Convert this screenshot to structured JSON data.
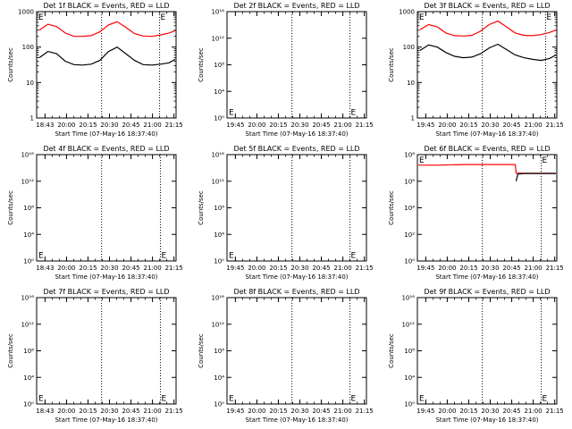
{
  "chart_data": [
    {
      "type": "line",
      "title": "Det 1f BLACK = Events, RED = LLD",
      "xlabel": "Start Time (07-May-16 18:37:40)",
      "ylabel": "Counts/sec",
      "yscale": "log",
      "ylim": [
        1,
        1000
      ],
      "xlim": [
        "18:37",
        "21:18"
      ],
      "x_ticks": [
        "18:43",
        "20:00",
        "20:15",
        "20:30",
        "20:45",
        "21:00",
        "21:15"
      ],
      "y_ticks": [
        "1",
        "10",
        "100",
        "1000"
      ],
      "dotted_lines": [
        "19:52",
        "20:59"
      ],
      "markers": [
        {
          "label": "E",
          "x": "18:39",
          "y": 1000
        },
        {
          "label": "E",
          "x": "21:00",
          "y": 1000
        }
      ],
      "series": [
        {
          "color": "#ff0000",
          "x": [
            "18:40",
            "18:50",
            "19:00",
            "19:10",
            "19:20",
            "19:30",
            "19:40",
            "19:50",
            "20:00",
            "20:10",
            "20:20",
            "20:30",
            "20:40",
            "20:50",
            "21:00",
            "21:10",
            "21:17"
          ],
          "values": [
            300,
            440,
            380,
            250,
            200,
            200,
            210,
            270,
            420,
            520,
            360,
            240,
            205,
            200,
            220,
            250,
            290
          ]
        },
        {
          "color": "#000000",
          "x": [
            "18:40",
            "18:50",
            "19:00",
            "19:10",
            "19:20",
            "19:30",
            "19:40",
            "19:50",
            "20:00",
            "20:10",
            "20:20",
            "20:30",
            "20:40",
            "20:50",
            "21:00",
            "21:10",
            "21:17"
          ],
          "values": [
            50,
            75,
            65,
            40,
            32,
            31,
            33,
            42,
            75,
            100,
            65,
            42,
            32,
            31,
            33,
            36,
            45
          ]
        }
      ]
    },
    {
      "type": "line",
      "title": "Det 2f BLACK = Events, RED = LLD",
      "xlabel": "Start Time (07-May-16 18:37:40)",
      "ylabel": "Counts/sec",
      "yscale": "log",
      "ylim": [
        1,
        1e+16
      ],
      "xlim": [
        "18:37",
        "21:18"
      ],
      "x_ticks": [
        "19:45",
        "20:00",
        "20:15",
        "20:30",
        "20:45",
        "21:00",
        "21:15"
      ],
      "y_ticks": [
        "10⁰",
        "10⁴",
        "10⁸",
        "10¹²",
        "10¹⁶"
      ],
      "dotted_lines": [
        "19:52",
        "20:59"
      ],
      "markers": [
        {
          "label": "E",
          "x": "18:39",
          "y": 3
        },
        {
          "label": "E",
          "x": "21:00",
          "y": 3
        }
      ],
      "series": []
    },
    {
      "type": "line",
      "title": "Det 3f BLACK = Events, RED = LLD",
      "xlabel": "Start Time (07-May-16 18:37:40)",
      "ylabel": "Counts/sec",
      "yscale": "log",
      "ylim": [
        1,
        1000
      ],
      "xlim": [
        "18:37",
        "21:18"
      ],
      "x_ticks": [
        "19:45",
        "20:00",
        "20:15",
        "20:30",
        "20:45",
        "21:00",
        "21:15"
      ],
      "y_ticks": [
        "1",
        "10",
        "100",
        "1000"
      ],
      "dotted_lines": [
        "19:52",
        "21:05"
      ],
      "markers": [
        {
          "label": "E",
          "x": "18:39",
          "y": 1000
        },
        {
          "label": "E",
          "x": "21:06",
          "y": 1000
        }
      ],
      "series": [
        {
          "color": "#ff0000",
          "x": [
            "18:40",
            "18:50",
            "19:00",
            "19:10",
            "19:20",
            "19:30",
            "19:40",
            "19:50",
            "20:00",
            "20:10",
            "20:20",
            "20:30",
            "20:40",
            "20:50",
            "21:00",
            "21:10",
            "21:17"
          ],
          "values": [
            310,
            430,
            370,
            250,
            210,
            205,
            215,
            280,
            430,
            540,
            370,
            250,
            215,
            210,
            225,
            260,
            300
          ]
        },
        {
          "color": "#000000",
          "x": [
            "18:40",
            "18:50",
            "19:00",
            "19:10",
            "19:20",
            "19:30",
            "19:40",
            "19:50",
            "20:00",
            "20:10",
            "20:20",
            "20:30",
            "20:40",
            "20:50",
            "21:00",
            "21:10",
            "21:17"
          ],
          "values": [
            80,
            115,
            100,
            70,
            55,
            50,
            52,
            65,
            95,
            120,
            85,
            60,
            50,
            45,
            42,
            48,
            60
          ]
        }
      ]
    },
    {
      "type": "line",
      "title": "Det 4f BLACK = Events, RED = LLD",
      "xlabel": "Start Time (07-May-16 18:37:40)",
      "ylabel": "Counts/sec",
      "yscale": "log",
      "ylim": [
        1,
        1e+16
      ],
      "xlim": [
        "18:37",
        "21:18"
      ],
      "x_ticks": [
        "18:43",
        "20:00",
        "20:15",
        "20:30",
        "20:45",
        "21:00",
        "21:15"
      ],
      "y_ticks": [
        "10⁰",
        "10⁴",
        "10⁸",
        "10¹²",
        "10¹⁶"
      ],
      "dotted_lines": [
        "19:52",
        "21:00"
      ],
      "markers": [
        {
          "label": "E",
          "x": "18:39",
          "y": 3
        },
        {
          "label": "E",
          "x": "21:01",
          "y": 3
        }
      ],
      "series": []
    },
    {
      "type": "line",
      "title": "Det 5f BLACK = Events, RED = LLD",
      "xlabel": "Start Time (07-May-16 18:37:40)",
      "ylabel": "Counts/sec",
      "yscale": "log",
      "ylim": [
        1,
        1e+16
      ],
      "xlim": [
        "18:37",
        "21:18"
      ],
      "x_ticks": [
        "19:45",
        "20:00",
        "20:15",
        "20:30",
        "20:45",
        "21:00",
        "21:15"
      ],
      "y_ticks": [
        "10⁰",
        "10⁴",
        "10⁸",
        "10¹²",
        "10¹⁶"
      ],
      "dotted_lines": [
        "19:52",
        "20:59"
      ],
      "markers": [
        {
          "label": "E",
          "x": "18:39",
          "y": 3
        },
        {
          "label": "E",
          "x": "21:00",
          "y": 3
        }
      ],
      "series": []
    },
    {
      "type": "line",
      "title": "Det 6f BLACK = Events, RED = LLD",
      "xlabel": "Start Time (07-May-16 18:37:40)",
      "ylabel": "Counts/sec",
      "yscale": "log",
      "ylim": [
        1,
        100000000.0
      ],
      "xlim": [
        "18:37",
        "21:18"
      ],
      "x_ticks": [
        "19:45",
        "20:00",
        "20:15",
        "20:30",
        "20:45",
        "21:00",
        "21:15"
      ],
      "y_ticks": [
        "10⁰",
        "10²",
        "10⁴",
        "10⁶",
        "10⁸"
      ],
      "dotted_lines": [
        "19:52",
        "21:00"
      ],
      "markers": [
        {
          "label": "E",
          "x": "18:39",
          "y": 100000000.0
        },
        {
          "label": "E",
          "x": "21:01",
          "y": 100000000.0
        }
      ],
      "series": [
        {
          "color": "#ff0000",
          "x": [
            "18:38",
            "19:00",
            "19:30",
            "20:00",
            "20:30",
            "20:31",
            "20:40",
            "21:00",
            "21:17"
          ],
          "values": [
            16000000.0,
            16000000.0,
            18000000.0,
            18000000.0,
            18000000.0,
            4000000.0,
            4000000.0,
            4000000.0,
            4000000.0
          ]
        },
        {
          "color": "#000000",
          "x": [
            "20:31",
            "20:33",
            "20:40",
            "21:00",
            "21:17"
          ],
          "values": [
            1000000.0,
            3500000.0,
            3800000.0,
            3800000.0,
            3800000.0
          ]
        }
      ]
    },
    {
      "type": "line",
      "title": "Det 7f BLACK = Events, RED = LLD",
      "xlabel": "Start Time (07-May-16 18:37:40)",
      "ylabel": "Counts/sec",
      "yscale": "log",
      "ylim": [
        1,
        1e+16
      ],
      "xlim": [
        "18:37",
        "21:18"
      ],
      "x_ticks": [
        "18:43",
        "20:00",
        "20:15",
        "20:30",
        "20:45",
        "21:00",
        "21:15"
      ],
      "y_ticks": [
        "10⁰",
        "10⁴",
        "10⁸",
        "10¹²",
        "10¹⁶"
      ],
      "dotted_lines": [
        "19:52",
        "21:00"
      ],
      "markers": [
        {
          "label": "E",
          "x": "18:39",
          "y": 3
        },
        {
          "label": "E",
          "x": "21:01",
          "y": 3
        }
      ],
      "series": []
    },
    {
      "type": "line",
      "title": "Det 8f BLACK = Events, RED = LLD",
      "xlabel": "Start Time (07-May-16 18:37:40)",
      "ylabel": "Counts/sec",
      "yscale": "log",
      "ylim": [
        1,
        1e+16
      ],
      "xlim": [
        "18:37",
        "21:18"
      ],
      "x_ticks": [
        "19:45",
        "20:00",
        "20:15",
        "20:30",
        "20:45",
        "21:00",
        "21:15"
      ],
      "y_ticks": [
        "10⁰",
        "10⁴",
        "10⁸",
        "10¹²",
        "10¹⁶"
      ],
      "dotted_lines": [
        "19:52",
        "20:59"
      ],
      "markers": [
        {
          "label": "E",
          "x": "18:39",
          "y": 3
        },
        {
          "label": "E",
          "x": "21:00",
          "y": 3
        }
      ],
      "series": []
    },
    {
      "type": "line",
      "title": "Det 9f BLACK = Events, RED = LLD",
      "xlabel": "Start Time (07-May-16 18:37:40)",
      "ylabel": "Counts/sec",
      "yscale": "log",
      "ylim": [
        1,
        1e+16
      ],
      "xlim": [
        "18:37",
        "21:18"
      ],
      "x_ticks": [
        "19:45",
        "20:00",
        "20:15",
        "20:30",
        "20:45",
        "21:00",
        "21:15"
      ],
      "y_ticks": [
        "10⁰",
        "10⁴",
        "10⁸",
        "10¹²",
        "10¹⁶"
      ],
      "dotted_lines": [
        "19:52",
        "21:00"
      ],
      "markers": [
        {
          "label": "E",
          "x": "18:39",
          "y": 3
        },
        {
          "label": "E",
          "x": "21:01",
          "y": 3
        }
      ],
      "series": []
    }
  ]
}
